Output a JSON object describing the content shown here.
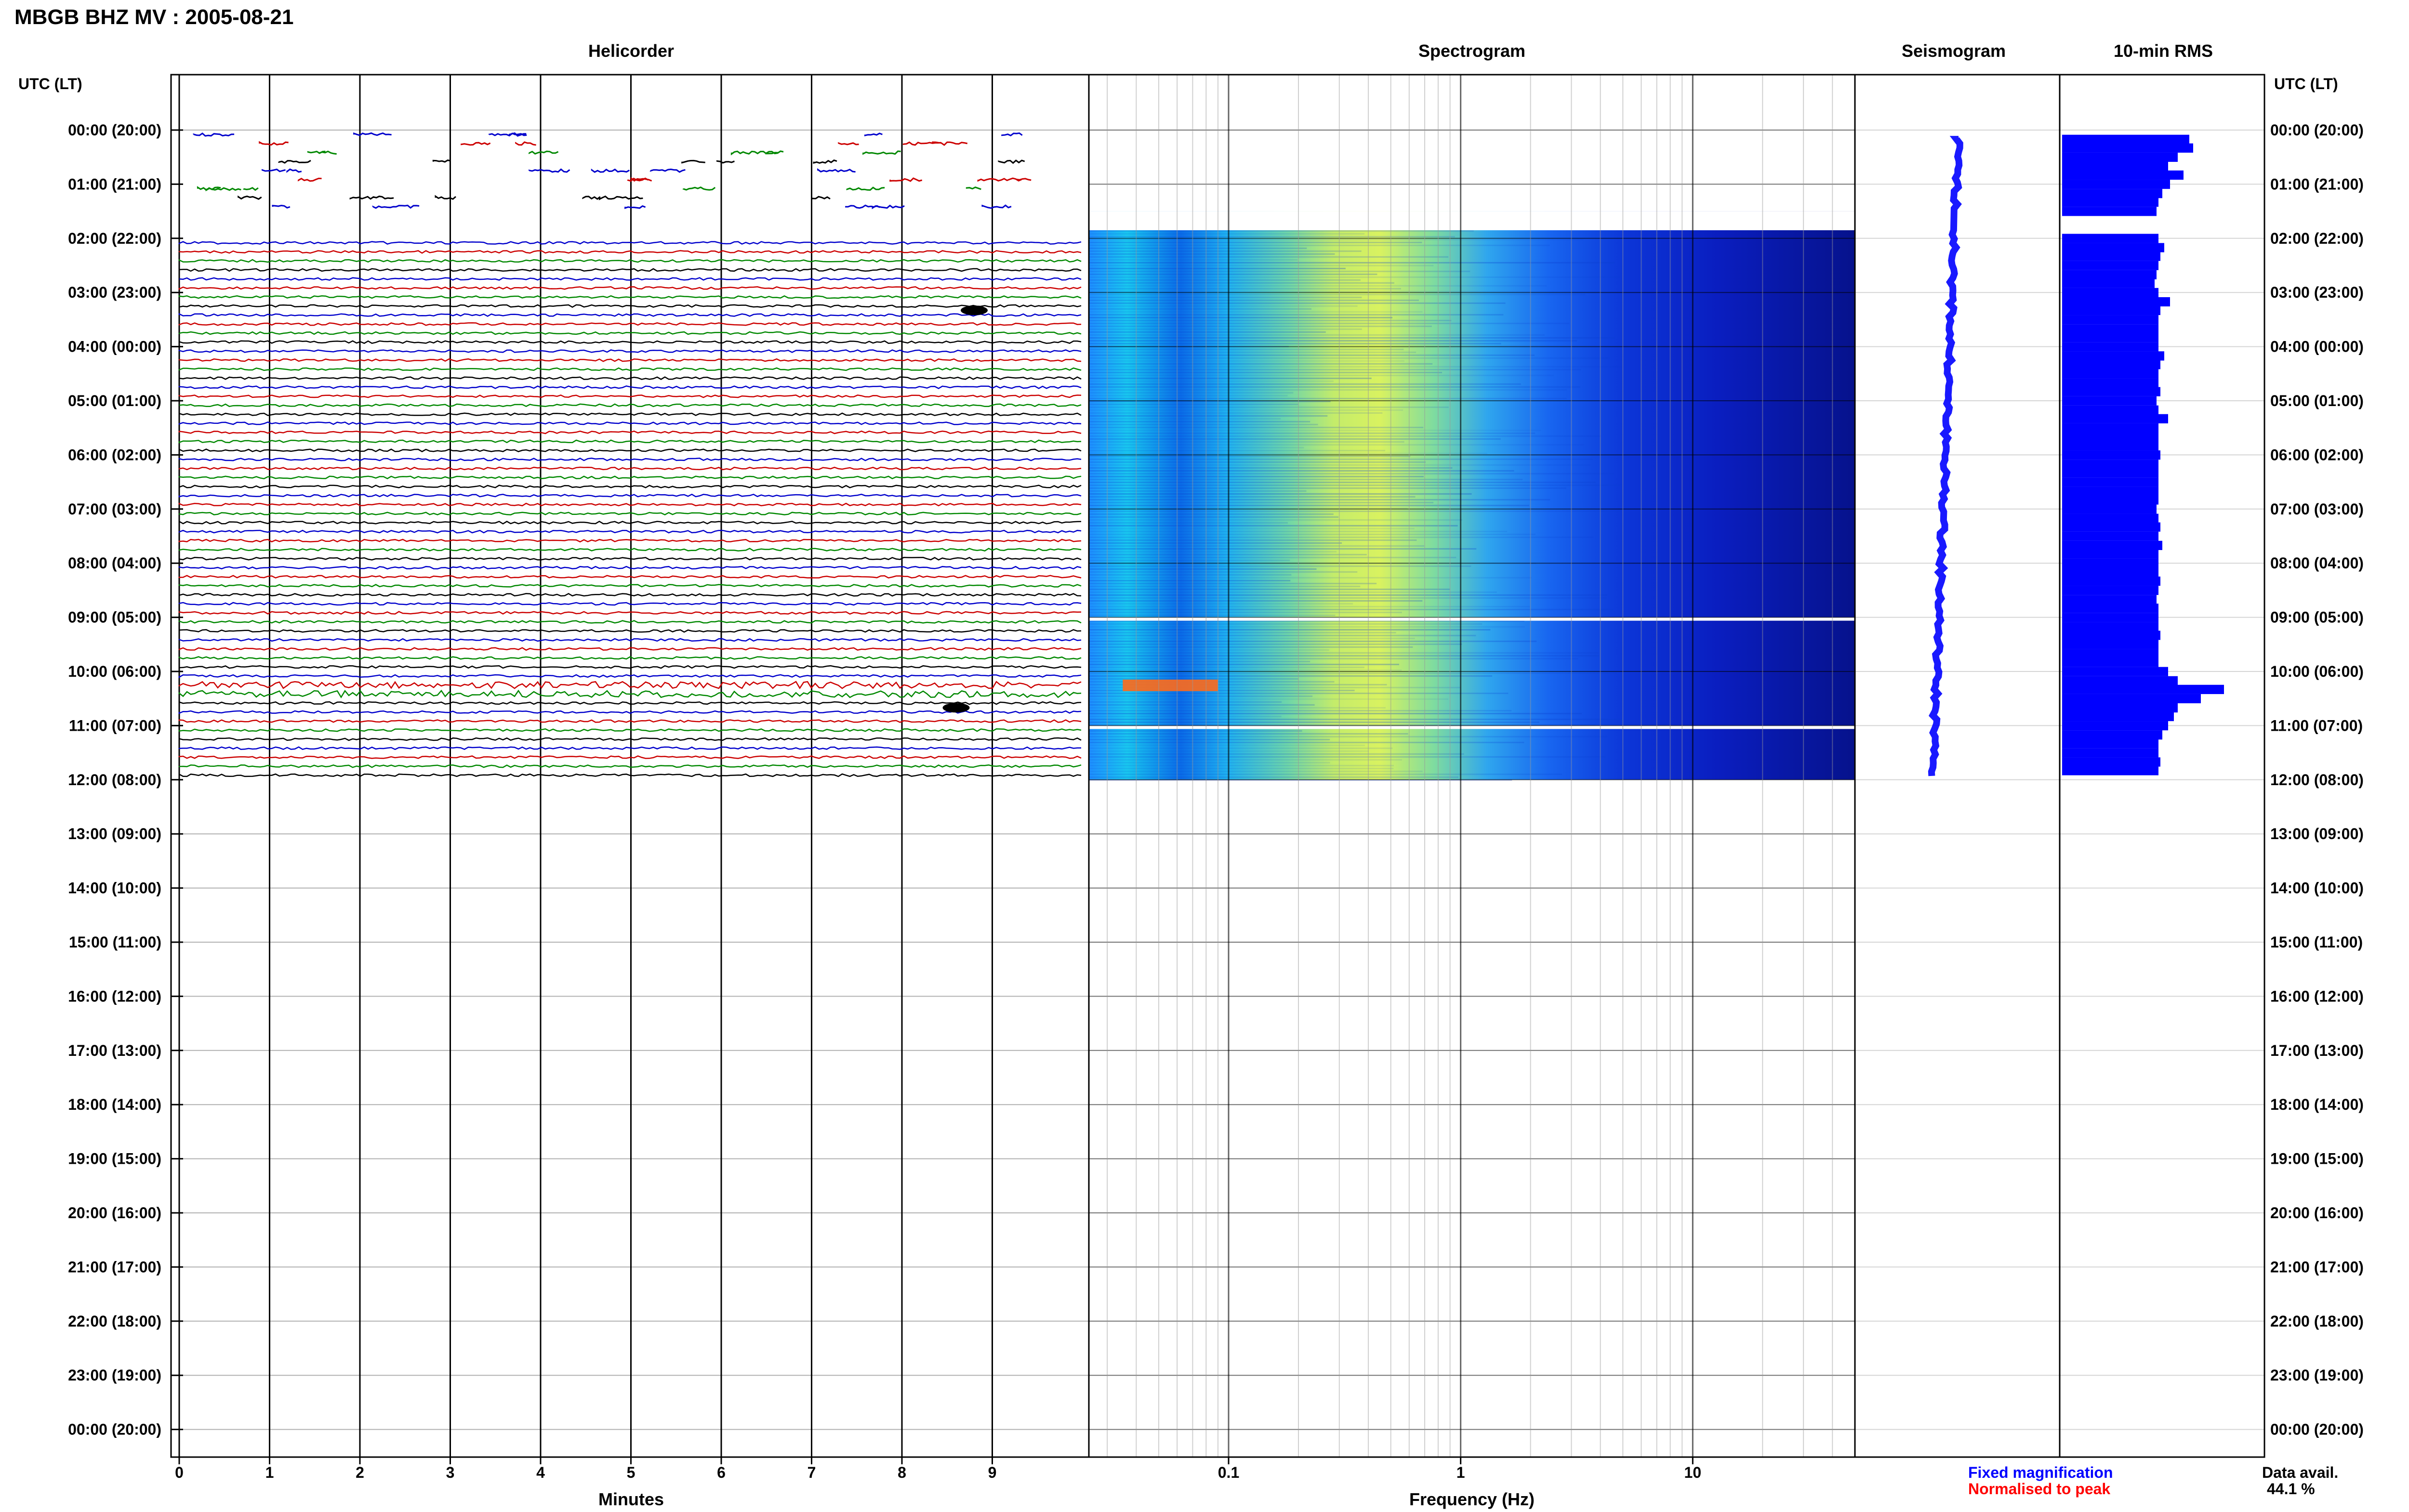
{
  "header": {
    "title": "MBGB BHZ MV : 2005-08-21"
  },
  "panels": {
    "helicorder": "Helicorder",
    "spectrogram": "Spectrogram",
    "seismogram": "Seismogram",
    "rms": "10-min RMS"
  },
  "axes": {
    "left_header": "UTC (LT)",
    "right_header": "UTC (LT)",
    "helicorder_xlabel": "Minutes",
    "spectrogram_xlabel": "Frequency (Hz)",
    "minute_ticks": [
      "0",
      "1",
      "2",
      "3",
      "4",
      "5",
      "6",
      "7",
      "8",
      "9"
    ],
    "frequency_ticks": [
      "0.1",
      "1",
      "10"
    ],
    "time_labels": [
      "00:00 (20:00)",
      "01:00 (21:00)",
      "02:00 (22:00)",
      "03:00 (23:00)",
      "04:00 (00:00)",
      "05:00 (01:00)",
      "06:00 (02:00)",
      "07:00 (03:00)",
      "08:00 (04:00)",
      "09:00 (05:00)",
      "10:00 (06:00)",
      "11:00 (07:00)",
      "12:00 (08:00)",
      "13:00 (09:00)",
      "14:00 (10:00)",
      "15:00 (11:00)",
      "16:00 (12:00)",
      "17:00 (13:00)",
      "18:00 (14:00)",
      "19:00 (15:00)",
      "20:00 (16:00)",
      "21:00 (17:00)",
      "22:00 (18:00)",
      "23:00 (19:00)",
      "00:00 (20:00)"
    ]
  },
  "legend": {
    "fixed": "Fixed magnification",
    "fixed_color": "#0000ff",
    "normalised": "Normalised to peak",
    "normalised_color": "#ff0000"
  },
  "availability": {
    "label": "Data avail.",
    "value": "44.1 %"
  },
  "colors": {
    "trace_cycle": [
      "#0000cc",
      "#cc0000",
      "#008800",
      "#000000"
    ],
    "seismo": "#0000ff",
    "rms": "#0000ff"
  },
  "chart_data": {
    "type": "heatmap",
    "station": "MBGB BHZ MV",
    "date": "2005-08-21",
    "y_range_hours_utc": [
      0,
      24
    ],
    "data_end_hour_utc": 12,
    "helicorder_xlim_minutes": [
      0,
      10
    ],
    "frequency_range_hz": [
      0.025,
      50
    ],
    "frequency_scale": "log",
    "data_gaps_hours": [
      [
        1.5,
        1.85
      ],
      [
        9.0,
        9.03
      ],
      [
        11.0,
        11.03
      ]
    ],
    "rms_10min": {
      "hours": [
        0.17,
        0.33,
        0.5,
        0.67,
        0.83,
        1.0,
        1.17,
        1.33,
        1.5,
        2.0,
        2.17,
        2.33,
        2.5,
        2.67,
        2.83,
        3.0,
        3.17,
        3.33,
        3.5,
        3.67,
        3.83,
        4.0,
        4.17,
        4.33,
        4.5,
        4.67,
        4.83,
        5.0,
        5.17,
        5.33,
        5.5,
        5.67,
        5.83,
        6.0,
        6.17,
        6.33,
        6.5,
        6.67,
        6.83,
        7.0,
        7.17,
        7.33,
        7.5,
        7.67,
        7.83,
        8.0,
        8.17,
        8.33,
        8.5,
        8.67,
        8.83,
        9.0,
        9.17,
        9.33,
        9.5,
        9.67,
        9.83,
        10.0,
        10.17,
        10.33,
        10.5,
        10.67,
        10.83,
        11.0,
        11.17,
        11.33,
        11.5,
        11.67,
        11.83
      ],
      "relative": [
        0.66,
        0.68,
        0.6,
        0.55,
        0.63,
        0.56,
        0.52,
        0.5,
        0.49,
        0.5,
        0.53,
        0.51,
        0.5,
        0.49,
        0.48,
        0.5,
        0.56,
        0.51,
        0.5,
        0.5,
        0.5,
        0.5,
        0.53,
        0.51,
        0.5,
        0.5,
        0.51,
        0.49,
        0.5,
        0.55,
        0.5,
        0.5,
        0.5,
        0.51,
        0.5,
        0.5,
        0.5,
        0.5,
        0.5,
        0.49,
        0.5,
        0.51,
        0.5,
        0.52,
        0.5,
        0.5,
        0.5,
        0.51,
        0.5,
        0.49,
        0.5,
        0.5,
        0.5,
        0.51,
        0.5,
        0.5,
        0.5,
        0.55,
        0.6,
        0.84,
        0.72,
        0.6,
        0.58,
        0.55,
        0.52,
        0.5,
        0.5,
        0.51,
        0.5
      ]
    },
    "events": [
      {
        "panel": "helicorder",
        "hour": 3.33,
        "minute": 8.8,
        "note": ""
      },
      {
        "panel": "helicorder",
        "hour": 10.67,
        "minute": 8.6,
        "note": ""
      }
    ],
    "legend_placement": "bottom-right"
  }
}
